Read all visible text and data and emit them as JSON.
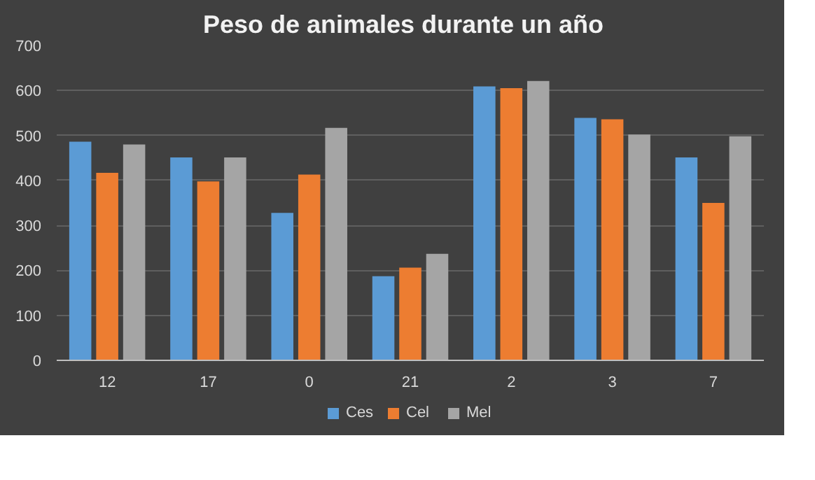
{
  "chart_data": {
    "type": "bar",
    "title": "Peso de animales  durante  un año",
    "categories": [
      "12",
      "17",
      "0",
      "21",
      "2",
      "3",
      "7"
    ],
    "series": [
      {
        "name": "Ces",
        "color": "#5b9bd5",
        "values": [
          486,
          451,
          328,
          187,
          609,
          539,
          451
        ]
      },
      {
        "name": "Cel",
        "color": "#ed7d31",
        "values": [
          417,
          398,
          413,
          206,
          605,
          536,
          350
        ]
      },
      {
        "name": "Mel",
        "color": "#a5a5a5",
        "values": [
          480,
          451,
          517,
          237,
          621,
          502,
          498
        ]
      }
    ],
    "ylim": [
      0,
      700
    ],
    "yticks": [
      0,
      100,
      200,
      300,
      400,
      500,
      600,
      700
    ],
    "grid": "y",
    "legend": "bottom"
  }
}
